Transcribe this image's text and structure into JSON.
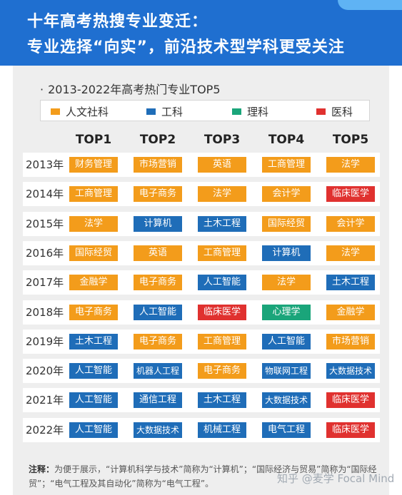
{
  "header": {
    "line1": "十年高考热搜专业变迁：",
    "line2": "专业选择“向实”，前沿技术型学科更受关注"
  },
  "subtitle": "2013-2022年高考热门专业TOP5",
  "subtitle_bullet": "·",
  "legend": [
    {
      "label": "人文社科",
      "color": "#f39c1b"
    },
    {
      "label": "工科",
      "color": "#1f6db8"
    },
    {
      "label": "理科",
      "color": "#1aa57a"
    },
    {
      "label": "医科",
      "color": "#e0312f"
    }
  ],
  "columns": [
    "TOP1",
    "TOP2",
    "TOP3",
    "TOP4",
    "TOP5"
  ],
  "rows": [
    {
      "year": "2013年",
      "cells": [
        {
          "t": "财务管理",
          "c": "hum"
        },
        {
          "t": "市场营销",
          "c": "hum"
        },
        {
          "t": "英语",
          "c": "hum"
        },
        {
          "t": "工商管理",
          "c": "hum"
        },
        {
          "t": "法学",
          "c": "hum"
        }
      ]
    },
    {
      "year": "2014年",
      "cells": [
        {
          "t": "工商管理",
          "c": "hum"
        },
        {
          "t": "电子商务",
          "c": "hum"
        },
        {
          "t": "法学",
          "c": "hum"
        },
        {
          "t": "会计学",
          "c": "hum"
        },
        {
          "t": "临床医学",
          "c": "med"
        }
      ]
    },
    {
      "year": "2015年",
      "cells": [
        {
          "t": "法学",
          "c": "hum"
        },
        {
          "t": "计算机",
          "c": "eng"
        },
        {
          "t": "土木工程",
          "c": "eng"
        },
        {
          "t": "国际经贸",
          "c": "hum"
        },
        {
          "t": "会计学",
          "c": "hum"
        }
      ]
    },
    {
      "year": "2016年",
      "cells": [
        {
          "t": "国际经贸",
          "c": "hum"
        },
        {
          "t": "英语",
          "c": "hum"
        },
        {
          "t": "工商管理",
          "c": "hum"
        },
        {
          "t": "计算机",
          "c": "eng"
        },
        {
          "t": "法学",
          "c": "hum"
        }
      ]
    },
    {
      "year": "2017年",
      "cells": [
        {
          "t": "金融学",
          "c": "hum"
        },
        {
          "t": "电子商务",
          "c": "hum"
        },
        {
          "t": "人工智能",
          "c": "eng"
        },
        {
          "t": "法学",
          "c": "hum"
        },
        {
          "t": "土木工程",
          "c": "eng"
        }
      ]
    },
    {
      "year": "2018年",
      "cells": [
        {
          "t": "电子商务",
          "c": "hum"
        },
        {
          "t": "人工智能",
          "c": "eng"
        },
        {
          "t": "临床医学",
          "c": "med"
        },
        {
          "t": "心理学",
          "c": "sci"
        },
        {
          "t": "金融学",
          "c": "hum"
        }
      ]
    },
    {
      "year": "2019年",
      "cells": [
        {
          "t": "土木工程",
          "c": "eng"
        },
        {
          "t": "电子商务",
          "c": "hum"
        },
        {
          "t": "工商管理",
          "c": "hum"
        },
        {
          "t": "人工智能",
          "c": "eng"
        },
        {
          "t": "市场营销",
          "c": "hum"
        }
      ]
    },
    {
      "year": "2020年",
      "cells": [
        {
          "t": "人工智能",
          "c": "eng"
        },
        {
          "t": "机器人工程",
          "c": "eng"
        },
        {
          "t": "电子商务",
          "c": "hum"
        },
        {
          "t": "物联网工程",
          "c": "eng"
        },
        {
          "t": "大数据技术",
          "c": "eng"
        }
      ]
    },
    {
      "year": "2021年",
      "cells": [
        {
          "t": "人工智能",
          "c": "eng"
        },
        {
          "t": "通信工程",
          "c": "eng"
        },
        {
          "t": "土木工程",
          "c": "eng"
        },
        {
          "t": "大数据技术",
          "c": "eng"
        },
        {
          "t": "临床医学",
          "c": "med"
        }
      ]
    },
    {
      "year": "2022年",
      "cells": [
        {
          "t": "人工智能",
          "c": "eng"
        },
        {
          "t": "大数据技术",
          "c": "eng"
        },
        {
          "t": "机械工程",
          "c": "eng"
        },
        {
          "t": "电气工程",
          "c": "eng"
        },
        {
          "t": "临床医学",
          "c": "med"
        }
      ]
    }
  ],
  "note": {
    "label": "注释：",
    "text": "为便于展示，“计算机科学与技术”简称为“计算机”；“国际经济与贸易”简称为“国际经贸”；“电气工程及其自动化”简称为“电气工程”。"
  },
  "watermark": "知乎 @麦学 Focal Mind"
}
